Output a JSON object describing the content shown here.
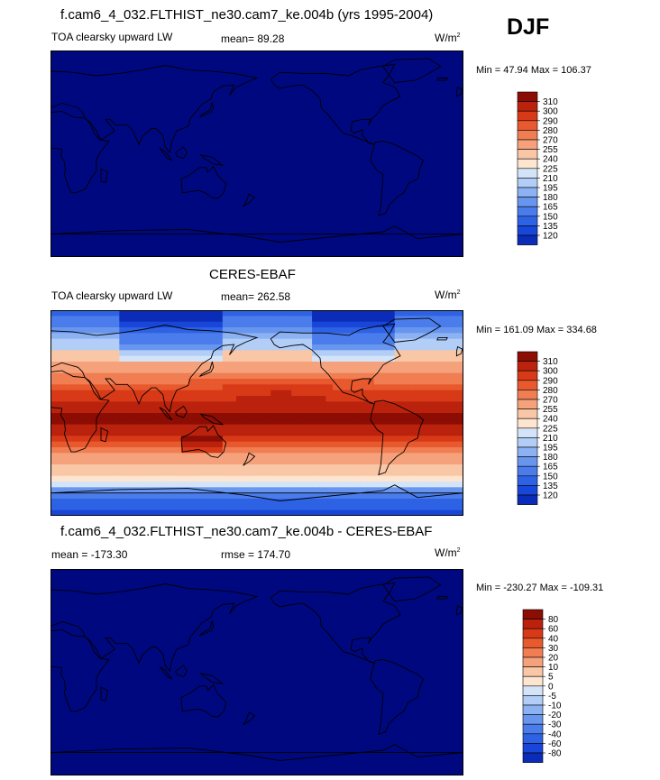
{
  "season": "DJF",
  "colors": {
    "ocean": "#000880",
    "outline": "#000000",
    "upper_palette": [
      "#000880",
      "#0a2cb8",
      "#1846d8",
      "#2e62e4",
      "#4a7cec",
      "#6896ef",
      "#8cb2f3",
      "#b2cef6",
      "#d4e4f8",
      "#fde5cf",
      "#f9c6a6",
      "#f5a27c",
      "#f07e52",
      "#e8592e",
      "#d83a18",
      "#ba220d",
      "#8c0d04"
    ],
    "lower_palette": [
      "#000880",
      "#0a2cb8",
      "#1846d8",
      "#2e62e4",
      "#4a7cec",
      "#6896ef",
      "#8cb2f3",
      "#b2cef6",
      "#d4e4f8",
      "#fde5cf",
      "#f9c6a6",
      "#f5a27c",
      "#f07e52",
      "#e8592e",
      "#d83a18",
      "#ba220d",
      "#8c0d04"
    ]
  },
  "panels": [
    {
      "title": "f.cam6_4_032.FLTHIST_ne30.cam7_ke.004b (yrs 1995-2004)",
      "variable": "TOA clearsky upward LW",
      "left_label": "TOA clearsky upward LW",
      "mid_label": "mean=  89.28",
      "units": "W/m",
      "units_exp": "2",
      "minmax": "Min =  47.94 Max = 106.37",
      "mean": 89.28,
      "min": 47.94,
      "max": 106.37,
      "colorbar_labels": [
        "310",
        "300",
        "290",
        "280",
        "270",
        "255",
        "240",
        "225",
        "210",
        "195",
        "180",
        "165",
        "150",
        "135",
        "120"
      ]
    },
    {
      "title": "CERES-EBAF",
      "variable": "TOA clearsky upward LW",
      "left_label": "TOA clearsky upward LW",
      "mid_label": "mean= 262.58",
      "units": "W/m",
      "units_exp": "2",
      "minmax": "Min = 161.09 Max = 334.68",
      "mean": 262.58,
      "min": 161.09,
      "max": 334.68,
      "colorbar_labels": [
        "310",
        "300",
        "290",
        "280",
        "270",
        "255",
        "240",
        "225",
        "210",
        "195",
        "180",
        "165",
        "150",
        "135",
        "120"
      ]
    },
    {
      "title": "f.cam6_4_032.FLTHIST_ne30.cam7_ke.004b - CERES-EBAF",
      "left_label": "mean = -173.30",
      "mid_label": "rmse = 174.70",
      "units": "W/m",
      "units_exp": "2",
      "minmax": "Min = -230.27 Max = -109.31",
      "mean": -173.3,
      "rmse": 174.7,
      "min": -230.27,
      "max": -109.31,
      "colorbar_labels": [
        "80",
        "60",
        "40",
        "30",
        "20",
        "10",
        "5",
        "0",
        "-5",
        "-10",
        "-20",
        "-30",
        "-40",
        "-60",
        "-80"
      ]
    }
  ],
  "chart_data": [
    {
      "type": "heatmap",
      "title": "f.cam6_4_032.FLTHIST_ne30.cam7_ke.004b (yrs 1995-2004)",
      "field": "TOA clearsky upward LW",
      "units": "W/m2",
      "mean": 89.28,
      "min": 47.94,
      "max": 106.37,
      "levels": [
        120,
        135,
        150,
        165,
        180,
        195,
        210,
        225,
        240,
        255,
        270,
        280,
        290,
        300,
        310
      ],
      "lat_range": [
        -90,
        90
      ],
      "lon_range": [
        0,
        360
      ]
    },
    {
      "type": "heatmap",
      "title": "CERES-EBAF",
      "field": "TOA clearsky upward LW",
      "units": "W/m2",
      "mean": 262.58,
      "min": 161.09,
      "max": 334.68,
      "levels": [
        120,
        135,
        150,
        165,
        180,
        195,
        210,
        225,
        240,
        255,
        270,
        280,
        290,
        300,
        310
      ],
      "lat_range": [
        -90,
        90
      ],
      "lon_range": [
        0,
        360
      ]
    },
    {
      "type": "heatmap",
      "title": "f.cam6_4_032.FLTHIST_ne30.cam7_ke.004b - CERES-EBAF",
      "units": "W/m2",
      "mean": -173.3,
      "rmse": 174.7,
      "min": -230.27,
      "max": -109.31,
      "levels": [
        -80,
        -60,
        -40,
        -30,
        -20,
        -10,
        -5,
        0,
        5,
        10,
        20,
        30,
        40,
        60,
        80
      ],
      "lat_range": [
        -90,
        90
      ],
      "lon_range": [
        0,
        360
      ]
    }
  ]
}
